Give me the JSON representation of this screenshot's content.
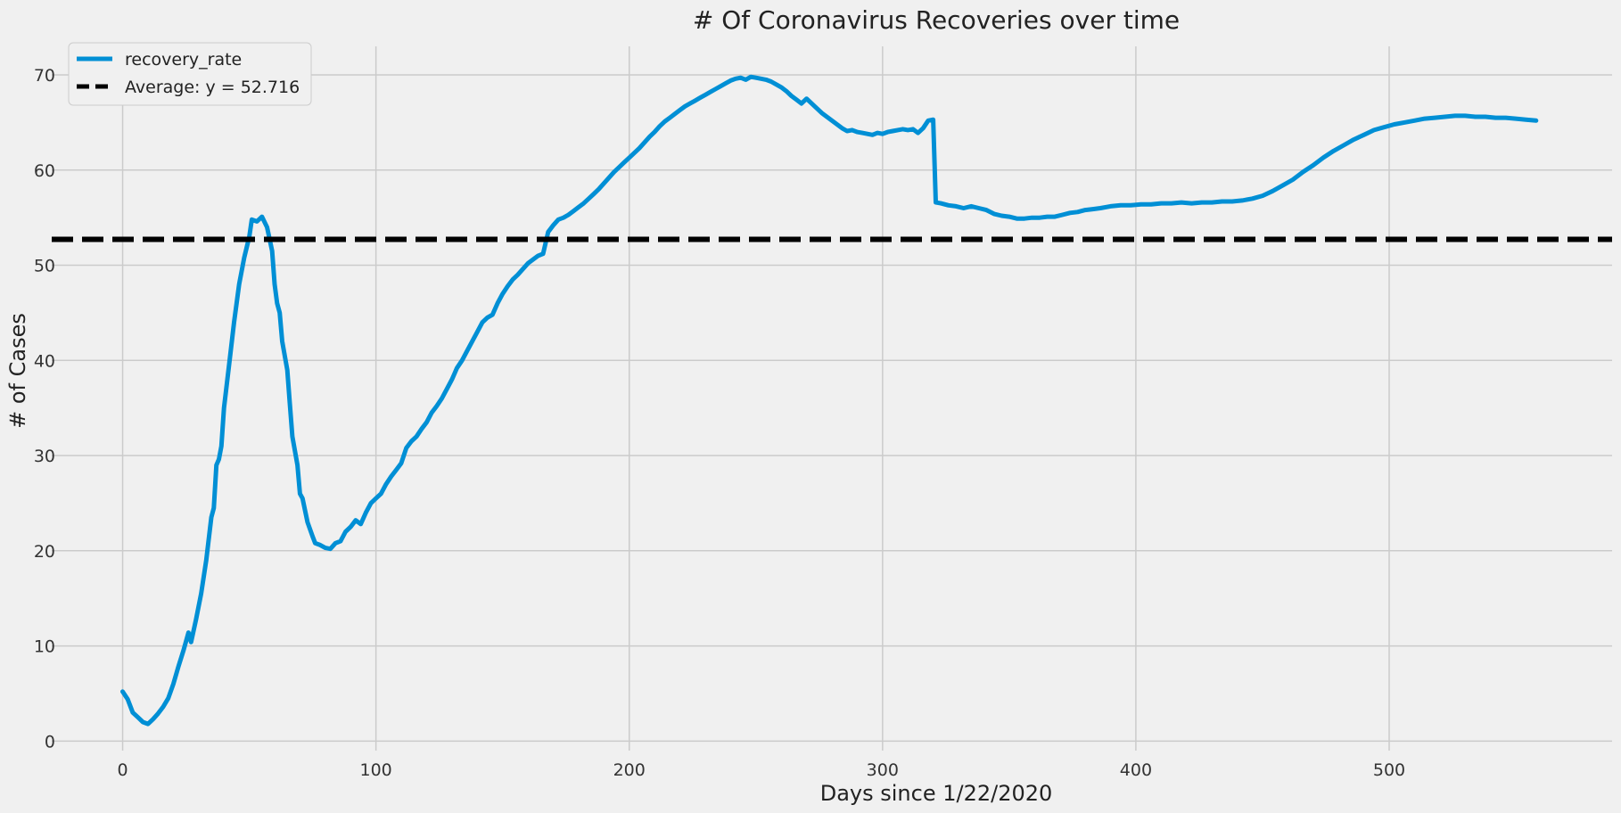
{
  "chart_data": {
    "type": "line",
    "title": "# Of Coronavirus Recoveries over time",
    "xlabel": "Days since 1/22/2020",
    "ylabel": "# of Cases",
    "xlim": [
      -28,
      588
    ],
    "ylim": [
      -1,
      73
    ],
    "x_ticks": [
      0,
      100,
      200,
      300,
      400,
      500
    ],
    "y_ticks": [
      0,
      10,
      20,
      30,
      40,
      50,
      60,
      70
    ],
    "grid": true,
    "legend": "upper-left",
    "series": [
      {
        "name": "recovery_rate",
        "color": "#008fd5",
        "style": "solid",
        "points": [
          [
            0,
            5.2
          ],
          [
            2,
            4.4
          ],
          [
            4,
            3.0
          ],
          [
            6,
            2.5
          ],
          [
            8,
            2.0
          ],
          [
            10,
            1.8
          ],
          [
            12,
            2.3
          ],
          [
            14,
            2.9
          ],
          [
            16,
            3.6
          ],
          [
            18,
            4.5
          ],
          [
            20,
            6.0
          ],
          [
            22,
            7.8
          ],
          [
            24,
            9.5
          ],
          [
            26,
            11.4
          ],
          [
            27,
            10.4
          ],
          [
            29,
            12.8
          ],
          [
            31,
            15.5
          ],
          [
            33,
            19.0
          ],
          [
            35,
            23.5
          ],
          [
            36,
            24.5
          ],
          [
            37,
            29.0
          ],
          [
            38,
            29.6
          ],
          [
            39,
            31.0
          ],
          [
            40,
            35.0
          ],
          [
            42,
            39.5
          ],
          [
            44,
            44.0
          ],
          [
            46,
            48.0
          ],
          [
            48,
            50.8
          ],
          [
            50,
            53.0
          ],
          [
            51,
            54.8
          ],
          [
            53,
            54.6
          ],
          [
            55,
            55.1
          ],
          [
            57,
            54.0
          ],
          [
            59,
            51.5
          ],
          [
            60,
            48.0
          ],
          [
            61,
            46.0
          ],
          [
            62,
            45.0
          ],
          [
            63,
            42.0
          ],
          [
            65,
            39.0
          ],
          [
            66,
            35.5
          ],
          [
            67,
            32.0
          ],
          [
            69,
            29.0
          ],
          [
            70,
            26.0
          ],
          [
            71,
            25.5
          ],
          [
            73,
            23.0
          ],
          [
            75,
            21.5
          ],
          [
            76,
            20.8
          ],
          [
            78,
            20.6
          ],
          [
            80,
            20.3
          ],
          [
            82,
            20.2
          ],
          [
            84,
            20.8
          ],
          [
            86,
            21.0
          ],
          [
            88,
            22.0
          ],
          [
            90,
            22.5
          ],
          [
            92,
            23.2
          ],
          [
            94,
            22.8
          ],
          [
            96,
            24.0
          ],
          [
            98,
            25.0
          ],
          [
            100,
            25.5
          ],
          [
            102,
            26.0
          ],
          [
            104,
            27.0
          ],
          [
            106,
            27.8
          ],
          [
            108,
            28.5
          ],
          [
            110,
            29.2
          ],
          [
            112,
            30.8
          ],
          [
            114,
            31.5
          ],
          [
            116,
            32.0
          ],
          [
            118,
            32.8
          ],
          [
            120,
            33.5
          ],
          [
            122,
            34.5
          ],
          [
            124,
            35.2
          ],
          [
            126,
            36.0
          ],
          [
            128,
            37.0
          ],
          [
            130,
            38.0
          ],
          [
            132,
            39.2
          ],
          [
            134,
            40.0
          ],
          [
            136,
            41.0
          ],
          [
            138,
            42.0
          ],
          [
            140,
            43.0
          ],
          [
            142,
            44.0
          ],
          [
            144,
            44.5
          ],
          [
            146,
            44.8
          ],
          [
            148,
            46.0
          ],
          [
            150,
            47.0
          ],
          [
            152,
            47.8
          ],
          [
            154,
            48.5
          ],
          [
            156,
            49.0
          ],
          [
            158,
            49.6
          ],
          [
            160,
            50.2
          ],
          [
            162,
            50.6
          ],
          [
            164,
            51.0
          ],
          [
            166,
            51.2
          ],
          [
            168,
            53.5
          ],
          [
            170,
            54.2
          ],
          [
            172,
            54.8
          ],
          [
            174,
            55.0
          ],
          [
            176,
            55.3
          ],
          [
            178,
            55.7
          ],
          [
            180,
            56.1
          ],
          [
            182,
            56.5
          ],
          [
            184,
            57.0
          ],
          [
            186,
            57.5
          ],
          [
            188,
            58.0
          ],
          [
            190,
            58.6
          ],
          [
            192,
            59.2
          ],
          [
            194,
            59.8
          ],
          [
            196,
            60.3
          ],
          [
            198,
            60.8
          ],
          [
            200,
            61.3
          ],
          [
            202,
            61.8
          ],
          [
            204,
            62.3
          ],
          [
            206,
            62.9
          ],
          [
            208,
            63.5
          ],
          [
            210,
            64.0
          ],
          [
            212,
            64.6
          ],
          [
            214,
            65.1
          ],
          [
            216,
            65.5
          ],
          [
            218,
            65.9
          ],
          [
            220,
            66.3
          ],
          [
            222,
            66.7
          ],
          [
            224,
            67.0
          ],
          [
            226,
            67.3
          ],
          [
            228,
            67.6
          ],
          [
            230,
            67.9
          ],
          [
            232,
            68.2
          ],
          [
            234,
            68.5
          ],
          [
            236,
            68.8
          ],
          [
            238,
            69.1
          ],
          [
            240,
            69.4
          ],
          [
            242,
            69.6
          ],
          [
            244,
            69.7
          ],
          [
            246,
            69.5
          ],
          [
            248,
            69.8
          ],
          [
            250,
            69.7
          ],
          [
            252,
            69.6
          ],
          [
            254,
            69.5
          ],
          [
            256,
            69.3
          ],
          [
            258,
            69.0
          ],
          [
            260,
            68.7
          ],
          [
            262,
            68.3
          ],
          [
            264,
            67.8
          ],
          [
            266,
            67.4
          ],
          [
            268,
            67.0
          ],
          [
            270,
            67.5
          ],
          [
            272,
            67.0
          ],
          [
            274,
            66.5
          ],
          [
            276,
            66.0
          ],
          [
            278,
            65.6
          ],
          [
            280,
            65.2
          ],
          [
            282,
            64.8
          ],
          [
            284,
            64.4
          ],
          [
            286,
            64.1
          ],
          [
            288,
            64.2
          ],
          [
            290,
            64.0
          ],
          [
            292,
            63.9
          ],
          [
            294,
            63.8
          ],
          [
            296,
            63.7
          ],
          [
            298,
            63.9
          ],
          [
            300,
            63.8
          ],
          [
            302,
            64.0
          ],
          [
            304,
            64.1
          ],
          [
            306,
            64.2
          ],
          [
            308,
            64.3
          ],
          [
            310,
            64.2
          ],
          [
            312,
            64.3
          ],
          [
            314,
            63.9
          ],
          [
            316,
            64.4
          ],
          [
            318,
            65.2
          ],
          [
            320,
            65.3
          ],
          [
            321,
            56.6
          ],
          [
            323,
            56.5
          ],
          [
            326,
            56.3
          ],
          [
            329,
            56.2
          ],
          [
            332,
            56.0
          ],
          [
            335,
            56.2
          ],
          [
            338,
            56.0
          ],
          [
            341,
            55.8
          ],
          [
            344,
            55.4
          ],
          [
            347,
            55.2
          ],
          [
            350,
            55.1
          ],
          [
            353,
            54.9
          ],
          [
            356,
            54.9
          ],
          [
            359,
            55.0
          ],
          [
            362,
            55.0
          ],
          [
            365,
            55.1
          ],
          [
            368,
            55.1
          ],
          [
            371,
            55.3
          ],
          [
            374,
            55.5
          ],
          [
            377,
            55.6
          ],
          [
            380,
            55.8
          ],
          [
            383,
            55.9
          ],
          [
            386,
            56.0
          ],
          [
            390,
            56.2
          ],
          [
            394,
            56.3
          ],
          [
            398,
            56.3
          ],
          [
            402,
            56.4
          ],
          [
            406,
            56.4
          ],
          [
            410,
            56.5
          ],
          [
            414,
            56.5
          ],
          [
            418,
            56.6
          ],
          [
            422,
            56.5
          ],
          [
            426,
            56.6
          ],
          [
            430,
            56.6
          ],
          [
            434,
            56.7
          ],
          [
            438,
            56.7
          ],
          [
            442,
            56.8
          ],
          [
            446,
            57.0
          ],
          [
            450,
            57.3
          ],
          [
            454,
            57.8
          ],
          [
            458,
            58.4
          ],
          [
            462,
            59.0
          ],
          [
            466,
            59.8
          ],
          [
            470,
            60.5
          ],
          [
            474,
            61.3
          ],
          [
            478,
            62.0
          ],
          [
            482,
            62.6
          ],
          [
            486,
            63.2
          ],
          [
            490,
            63.7
          ],
          [
            494,
            64.2
          ],
          [
            498,
            64.5
          ],
          [
            502,
            64.8
          ],
          [
            506,
            65.0
          ],
          [
            510,
            65.2
          ],
          [
            514,
            65.4
          ],
          [
            518,
            65.5
          ],
          [
            522,
            65.6
          ],
          [
            526,
            65.7
          ],
          [
            530,
            65.7
          ],
          [
            534,
            65.6
          ],
          [
            538,
            65.6
          ],
          [
            542,
            65.5
          ],
          [
            546,
            65.5
          ],
          [
            550,
            65.4
          ],
          [
            554,
            65.3
          ],
          [
            558,
            65.2
          ]
        ]
      },
      {
        "name": "Average: y = 52.716",
        "color": "#000000",
        "style": "dashed",
        "y": 52.716
      }
    ]
  }
}
